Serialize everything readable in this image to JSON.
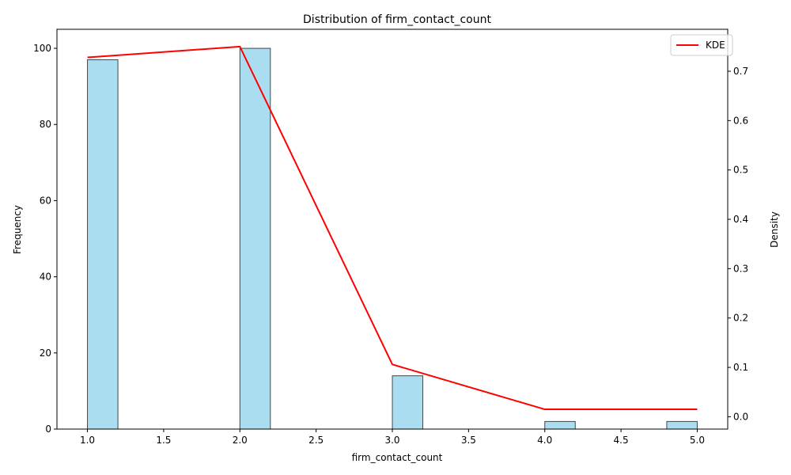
{
  "chart_data": {
    "type": "bar",
    "title": "Distribution of firm_contact_count",
    "xlabel": "firm_contact_count",
    "ylabel": "Frequency",
    "y2label": "Density",
    "xlim": [
      0.8,
      5.2
    ],
    "ylim": [
      0,
      105
    ],
    "y2lim": [
      -0.025,
      0.785
    ],
    "xticks": [
      "1.0",
      "1.5",
      "2.0",
      "2.5",
      "3.0",
      "3.5",
      "4.0",
      "4.5",
      "5.0"
    ],
    "yticks": [
      "0",
      "20",
      "40",
      "60",
      "80",
      "100"
    ],
    "y2ticks": [
      "0.0",
      "0.1",
      "0.2",
      "0.3",
      "0.4",
      "0.5",
      "0.6",
      "0.7"
    ],
    "bins": [
      {
        "start": 1.0,
        "end": 1.2,
        "count": 97
      },
      {
        "start": 2.0,
        "end": 2.2,
        "count": 100
      },
      {
        "start": 3.0,
        "end": 3.2,
        "count": 14
      },
      {
        "start": 4.0,
        "end": 4.2,
        "count": 2
      },
      {
        "start": 4.8,
        "end": 5.0,
        "count": 2
      }
    ],
    "kde": {
      "name": "KDE",
      "x": [
        1.0,
        2.0,
        3.0,
        4.0,
        5.0
      ],
      "y": [
        0.728,
        0.75,
        0.106,
        0.015,
        0.015
      ]
    },
    "legend": {
      "entries": [
        "KDE"
      ],
      "placement": "top-right"
    },
    "grid": false,
    "colors": {
      "bar_fill": "#87CEEB",
      "bar_edge": "#000000",
      "kde_line": "#FF0000"
    }
  }
}
